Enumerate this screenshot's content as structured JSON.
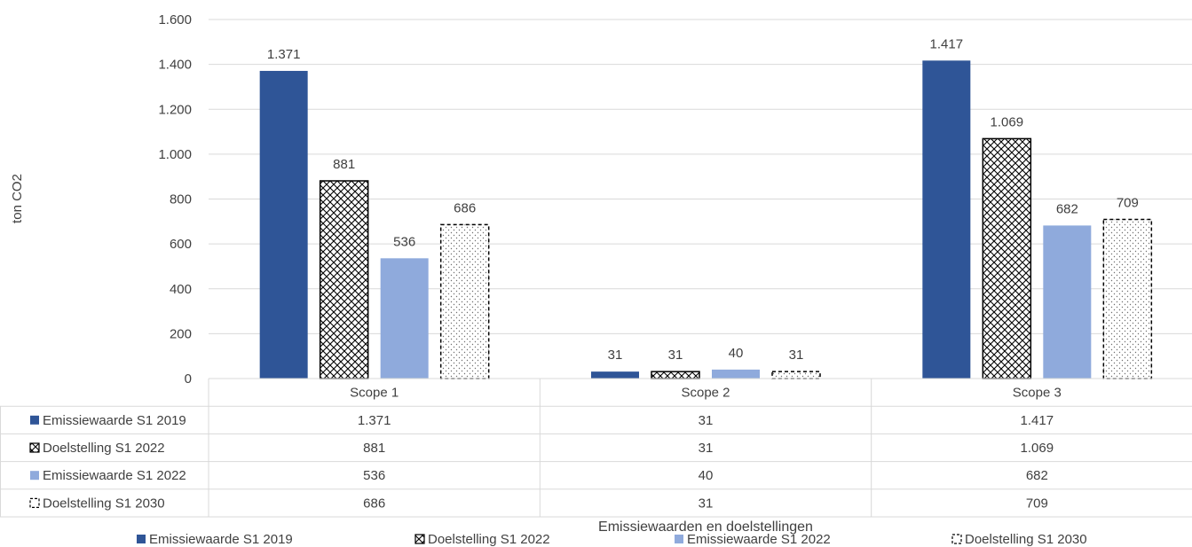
{
  "chart_data": {
    "type": "bar",
    "categories": [
      "Scope 1",
      "Scope 2",
      "Scope 3"
    ],
    "series": [
      {
        "name": "Emissiewaarde S1 2019",
        "values": [
          1371,
          31,
          1417
        ],
        "labels": [
          "1.371",
          "31",
          "1.417"
        ],
        "color": "#2F5597",
        "pattern": "solid"
      },
      {
        "name": "Doelstelling S1 2022",
        "values": [
          881,
          31,
          1069
        ],
        "labels": [
          "881",
          "31",
          "1.069"
        ],
        "color": "#000000",
        "pattern": "crosshatch"
      },
      {
        "name": "Emissiewaarde S1 2022",
        "values": [
          536,
          40,
          682
        ],
        "labels": [
          "536",
          "40",
          "682"
        ],
        "color": "#8FAADC",
        "pattern": "solid"
      },
      {
        "name": "Doelstelling S1 2030",
        "values": [
          686,
          31,
          709
        ],
        "labels": [
          "686",
          "31",
          "709"
        ],
        "color": "#000000",
        "pattern": "dotted-dashed"
      }
    ],
    "ylabel": "ton CO2",
    "xlabel": "Emissiewaarden  en doelstellingen",
    "ylim": [
      0,
      1600
    ],
    "yticks": [
      0,
      200,
      400,
      600,
      800,
      1000,
      1200,
      1400,
      1600
    ],
    "ytick_labels": [
      "0",
      "200",
      "400",
      "600",
      "800",
      "1.000",
      "1.200",
      "1.400",
      "1.600"
    ],
    "grid": true,
    "legend_position": "bottom",
    "data_table": true
  }
}
